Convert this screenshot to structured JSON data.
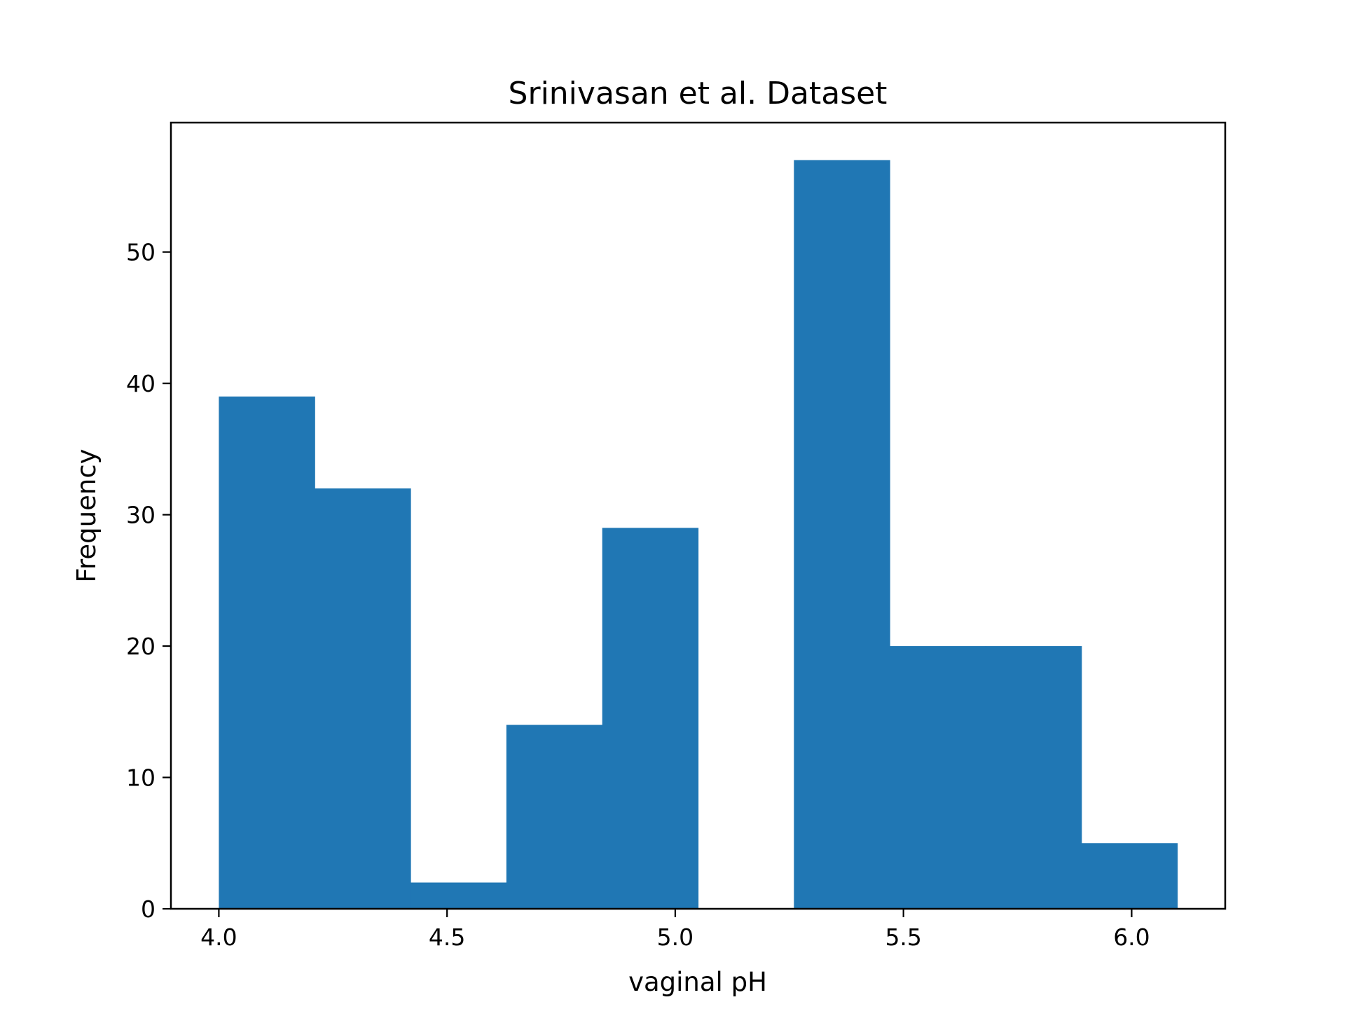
{
  "chart_data": {
    "type": "bar",
    "title": "Srinivasan et al. Dataset",
    "xlabel": "vaginal pH",
    "ylabel": "Frequency",
    "xlim": [
      3.895,
      6.205
    ],
    "ylim": [
      0,
      59.85
    ],
    "bar_color": "#2077b4",
    "bins": [
      {
        "x0": 4.0,
        "x1": 4.21,
        "value": 39
      },
      {
        "x0": 4.21,
        "x1": 4.42,
        "value": 32
      },
      {
        "x0": 4.42,
        "x1": 4.63,
        "value": 2
      },
      {
        "x0": 4.63,
        "x1": 4.84,
        "value": 14
      },
      {
        "x0": 4.84,
        "x1": 5.05,
        "value": 29
      },
      {
        "x0": 5.05,
        "x1": 5.26,
        "value": 0
      },
      {
        "x0": 5.26,
        "x1": 5.47,
        "value": 57
      },
      {
        "x0": 5.47,
        "x1": 5.68,
        "value": 20
      },
      {
        "x0": 5.68,
        "x1": 5.89,
        "value": 20
      },
      {
        "x0": 5.89,
        "x1": 6.1,
        "value": 5
      }
    ],
    "xticks": [
      {
        "value": 4.0,
        "label": "4.0"
      },
      {
        "value": 4.5,
        "label": "4.5"
      },
      {
        "value": 5.0,
        "label": "5.0"
      },
      {
        "value": 5.5,
        "label": "5.5"
      },
      {
        "value": 6.0,
        "label": "6.0"
      }
    ],
    "yticks": [
      {
        "value": 0,
        "label": "0"
      },
      {
        "value": 10,
        "label": "10"
      },
      {
        "value": 20,
        "label": "20"
      },
      {
        "value": 30,
        "label": "30"
      },
      {
        "value": 40,
        "label": "40"
      },
      {
        "value": 50,
        "label": "50"
      }
    ],
    "grid": false,
    "legend": "none"
  }
}
